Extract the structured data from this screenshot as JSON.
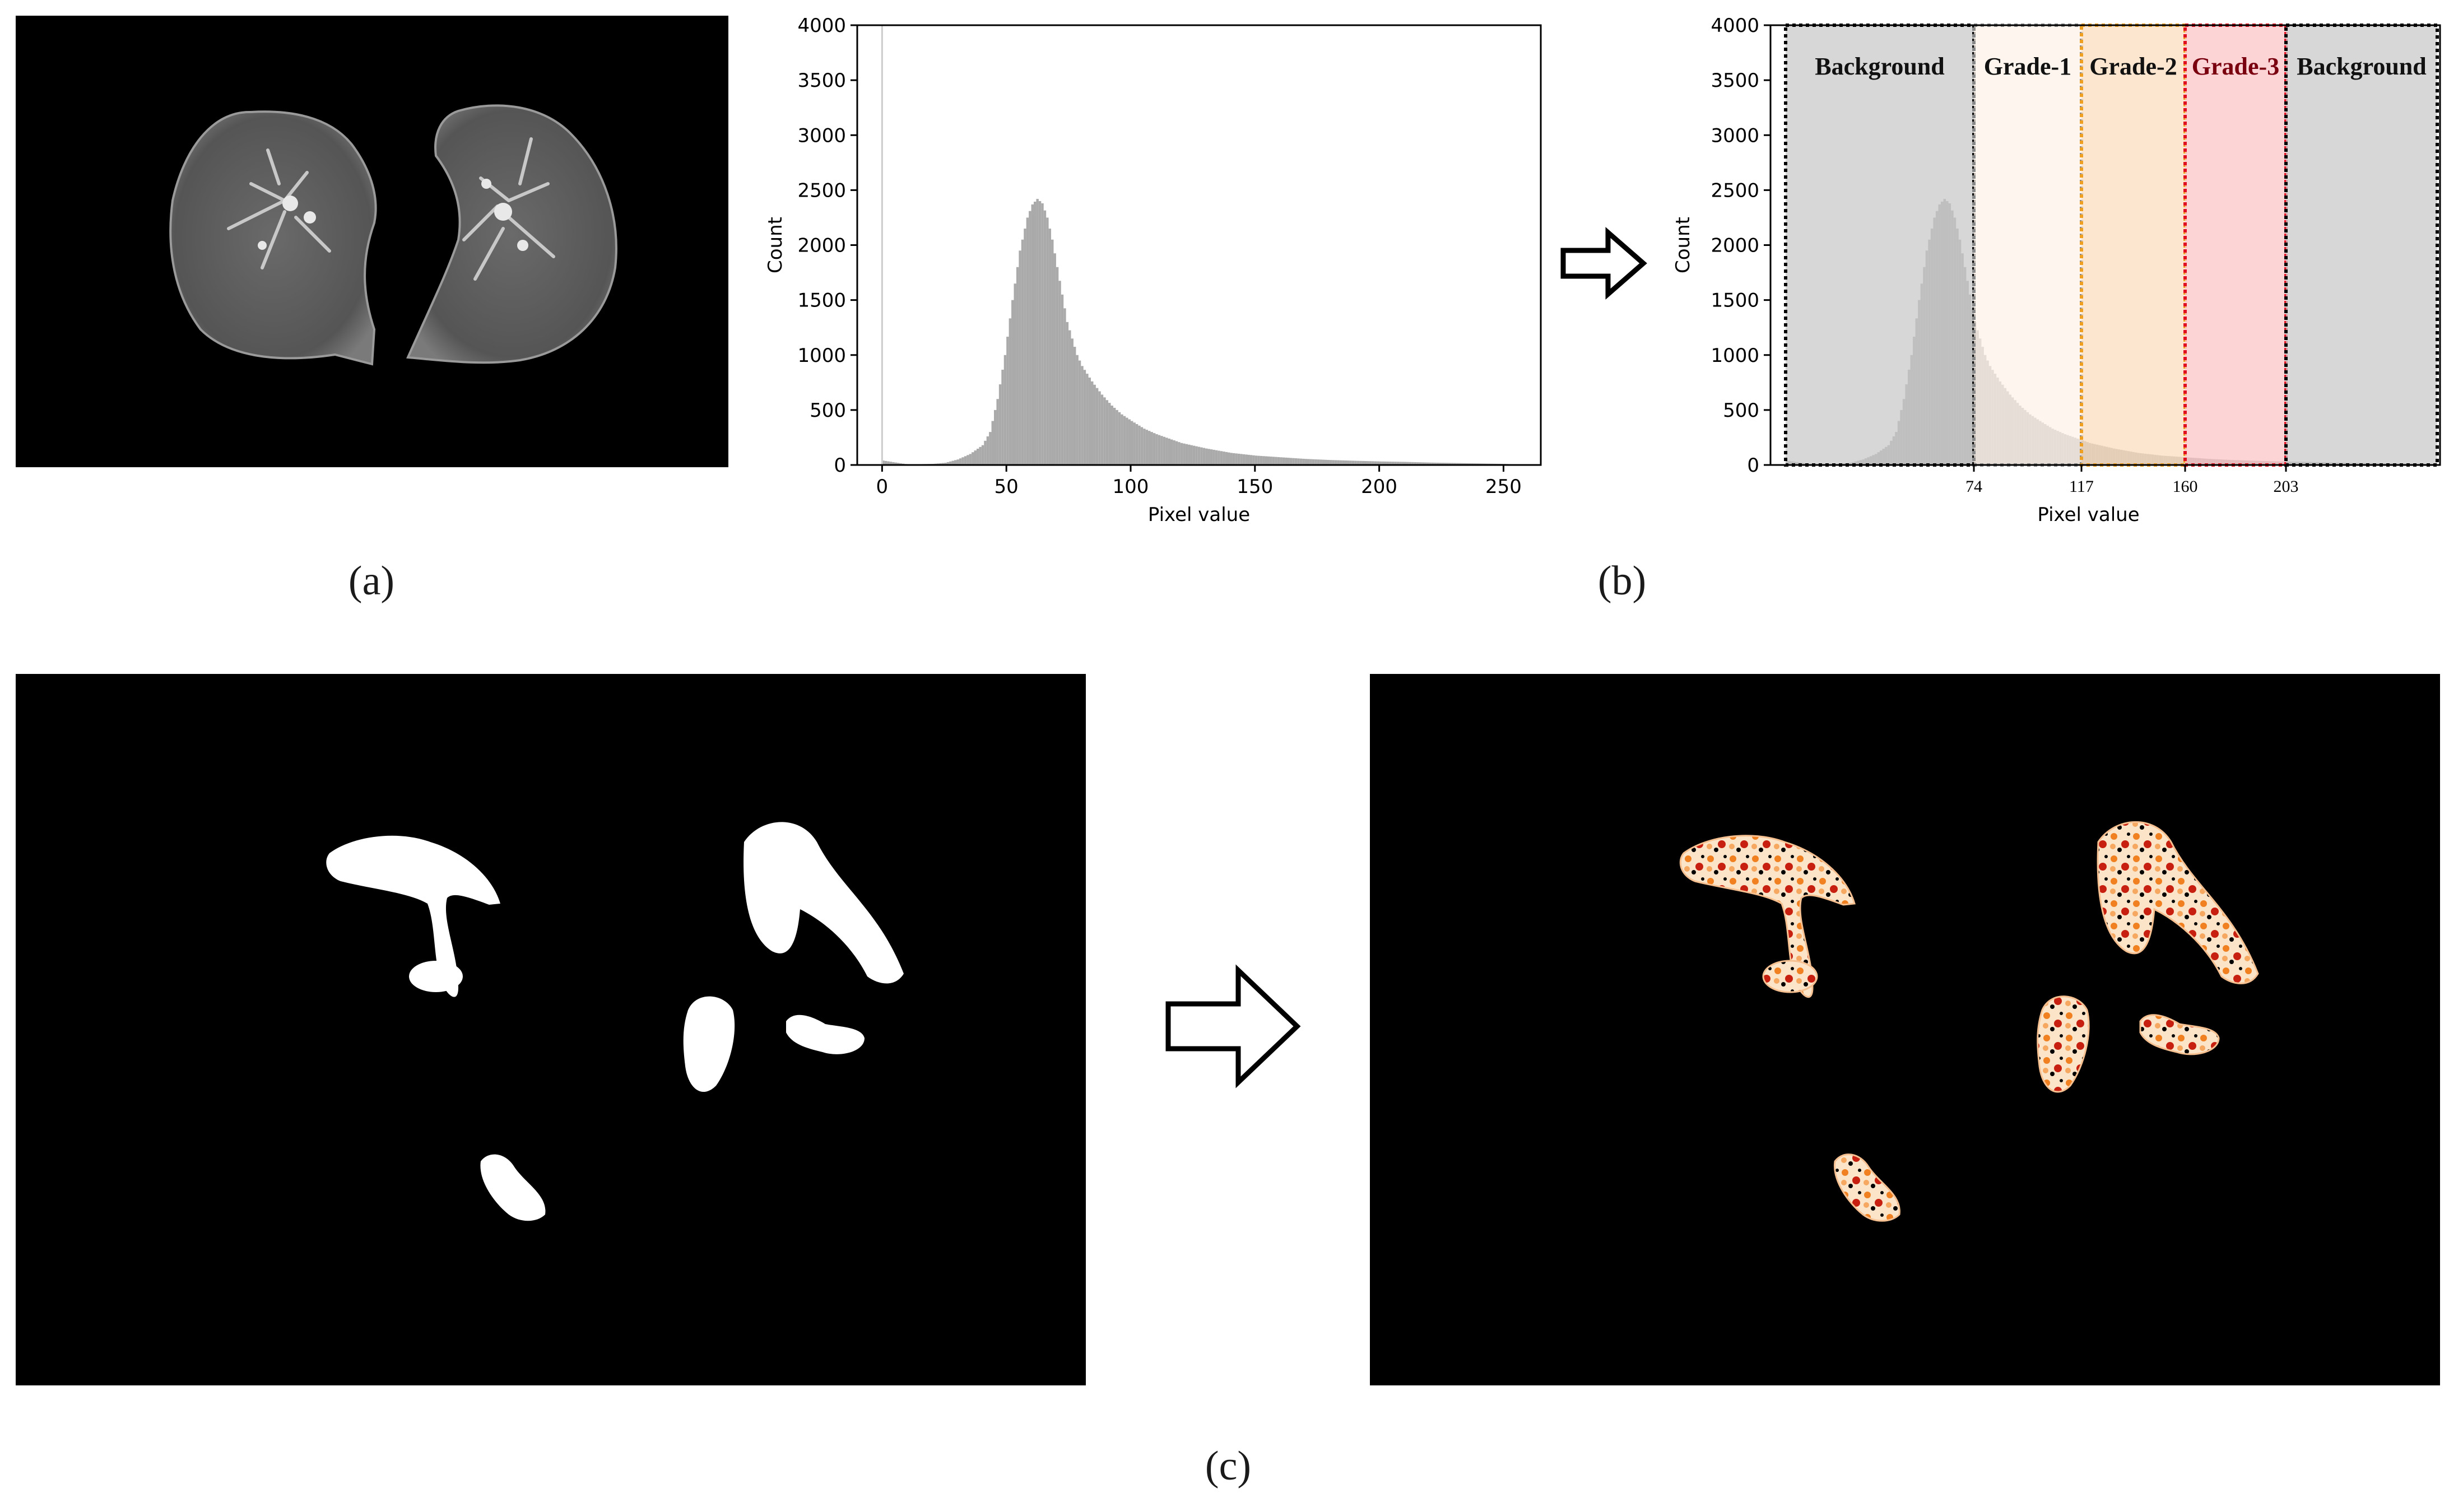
{
  "captions": {
    "a": "(a)",
    "b": "(b)",
    "c": "(c)"
  },
  "colors": {
    "histogram_bar": "#aaaaaa",
    "background_band": "#c8c8c8",
    "grade1_band": "#fdf2e8",
    "grade2_band": "#fbdcbc",
    "grade3_band": "#fbc4c6",
    "grade2_border": "#f0a020",
    "grade3_border": "#e01020",
    "heatmap_low": "#fbe4c8",
    "heatmap_mid": "#f08020",
    "heatmap_high": "#c82010"
  },
  "arrows": {
    "top_icon": "right-arrow-icon",
    "bottom_icon": "right-arrow-icon"
  },
  "chart_data": [
    {
      "type": "histogram",
      "xlabel": "Pixel value",
      "ylabel": "Count",
      "xlim": [
        -10,
        265
      ],
      "ylim": [
        0,
        4000
      ],
      "xticks": [
        0,
        50,
        100,
        150,
        200,
        250
      ],
      "yticks": [
        0,
        500,
        1000,
        1500,
        2000,
        2500,
        3000,
        3500,
        4000
      ],
      "bins": {
        "x": [
          0,
          10,
          20,
          25,
          30,
          35,
          40,
          43,
          46,
          49,
          52,
          55,
          58,
          60,
          62,
          63,
          64,
          66,
          68,
          70,
          72,
          74,
          76,
          78,
          80,
          84,
          88,
          92,
          96,
          100,
          105,
          110,
          115,
          120,
          130,
          140,
          150,
          160,
          170,
          180,
          190,
          200,
          210,
          220,
          230,
          240,
          250,
          255
        ],
        "y": [
          40,
          5,
          10,
          20,
          50,
          100,
          180,
          300,
          600,
          1000,
          1500,
          1950,
          2250,
          2370,
          2420,
          2400,
          2380,
          2250,
          2050,
          1800,
          1550,
          1300,
          1150,
          1000,
          900,
          760,
          640,
          540,
          460,
          400,
          330,
          280,
          240,
          200,
          150,
          110,
          85,
          70,
          55,
          45,
          38,
          32,
          28,
          22,
          18,
          14,
          10,
          5
        ]
      }
    },
    {
      "type": "histogram",
      "xlabel": "Pixel value",
      "ylabel": "Count",
      "yticks": [
        0,
        500,
        1000,
        1500,
        2000,
        2500,
        3000,
        3500,
        4000
      ],
      "xticks": [
        74,
        117,
        160,
        203
      ],
      "regions": [
        {
          "label": "Background",
          "from": 0,
          "to": 74
        },
        {
          "label": "Grade-1",
          "from": 74,
          "to": 117
        },
        {
          "label": "Grade-2",
          "from": 117,
          "to": 160
        },
        {
          "label": "Grade-3",
          "from": 160,
          "to": 203
        },
        {
          "label": "Background",
          "from": 203,
          "to": 255
        }
      ]
    }
  ]
}
